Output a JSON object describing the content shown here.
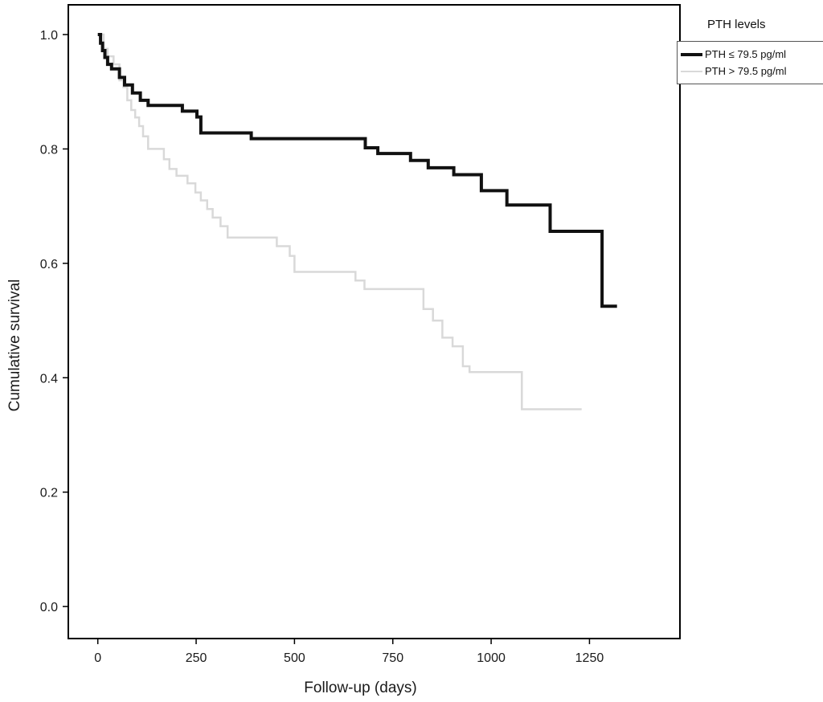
{
  "figure": {
    "background": "#ffffff",
    "frame_color": "#000000"
  },
  "legend": {
    "title": "PTH levels",
    "items": [
      {
        "label": "PTH ≤ 79.5 pg/ml",
        "color": "#111111",
        "thickness": 4
      },
      {
        "label": "PTH > 79.5 pg/ml",
        "color": "#d9d9d9",
        "thickness": 2
      }
    ]
  },
  "chart_data": {
    "type": "line",
    "subtype": "kaplan-meier-step",
    "title": "",
    "xlabel": "Follow-up (days)",
    "ylabel": "Cumulative survival",
    "xlim": [
      -75,
      1480
    ],
    "ylim": [
      -0.056,
      1.052
    ],
    "xticks": [
      0,
      250,
      500,
      750,
      1000,
      1250
    ],
    "xtick_labels": [
      "0",
      "250",
      "500",
      "750",
      "1000",
      "1250"
    ],
    "yticks": [
      0.0,
      0.2,
      0.4,
      0.6,
      0.8,
      1.0
    ],
    "ytick_labels": [
      "0.0",
      "0.2",
      "0.4",
      "0.6",
      "0.8",
      "1.0"
    ],
    "grid": false,
    "legend_position": "top-right-outside",
    "series": [
      {
        "name": "PTH ≤ 79.5 pg/ml",
        "color": "#111111",
        "width": 4,
        "steps": [
          [
            0,
            1.0
          ],
          [
            7,
            0.985
          ],
          [
            12,
            0.972
          ],
          [
            18,
            0.96
          ],
          [
            25,
            0.948
          ],
          [
            35,
            0.94
          ],
          [
            55,
            0.925
          ],
          [
            68,
            0.912
          ],
          [
            88,
            0.898
          ],
          [
            108,
            0.885
          ],
          [
            128,
            0.876
          ],
          [
            215,
            0.866
          ],
          [
            252,
            0.856
          ],
          [
            262,
            0.828
          ],
          [
            390,
            0.818
          ],
          [
            680,
            0.802
          ],
          [
            712,
            0.792
          ],
          [
            795,
            0.78
          ],
          [
            840,
            0.767
          ],
          [
            905,
            0.755
          ],
          [
            975,
            0.727
          ],
          [
            1040,
            0.702
          ],
          [
            1150,
            0.656
          ],
          [
            1282,
            0.525
          ],
          [
            1320,
            0.525
          ]
        ]
      },
      {
        "name": "PTH > 79.5 pg/ml",
        "color": "#d9d9d9",
        "width": 2.5,
        "steps": [
          [
            0,
            1.0
          ],
          [
            15,
            0.975
          ],
          [
            25,
            0.962
          ],
          [
            40,
            0.948
          ],
          [
            55,
            0.92
          ],
          [
            65,
            0.908
          ],
          [
            75,
            0.885
          ],
          [
            85,
            0.868
          ],
          [
            95,
            0.855
          ],
          [
            105,
            0.84
          ],
          [
            115,
            0.822
          ],
          [
            128,
            0.8
          ],
          [
            168,
            0.782
          ],
          [
            182,
            0.765
          ],
          [
            200,
            0.753
          ],
          [
            228,
            0.74
          ],
          [
            248,
            0.724
          ],
          [
            262,
            0.71
          ],
          [
            278,
            0.695
          ],
          [
            292,
            0.68
          ],
          [
            312,
            0.665
          ],
          [
            330,
            0.645
          ],
          [
            455,
            0.63
          ],
          [
            488,
            0.613
          ],
          [
            500,
            0.585
          ],
          [
            655,
            0.57
          ],
          [
            678,
            0.555
          ],
          [
            828,
            0.52
          ],
          [
            852,
            0.5
          ],
          [
            876,
            0.47
          ],
          [
            902,
            0.455
          ],
          [
            928,
            0.42
          ],
          [
            945,
            0.41
          ],
          [
            1078,
            0.345
          ],
          [
            1230,
            0.345
          ]
        ]
      }
    ]
  }
}
